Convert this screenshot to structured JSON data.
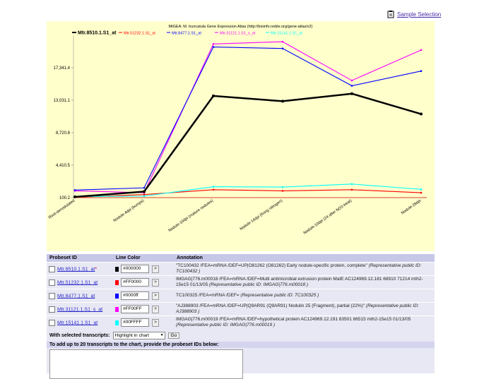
{
  "header": {
    "sample_selection": "Sample Selection"
  },
  "chart_data": {
    "type": "line",
    "title": "MtGEA: M. truncatula Gene Expression Atlas (http://bioinfo.noble.org/gene-atlas/v2)",
    "categories": [
      "Root-denodulated",
      "Nodule-4dpi (bumps)",
      "Nodule-10dpi (mature nodules)",
      "Nodule-14dpi (fixing nitrogen)",
      "Nodule-10dpi (24 after NO3 treat)",
      "Nodule-28dpi"
    ],
    "yticks": [
      "100.2",
      "4,410.5",
      "8,720.8",
      "13,031.1",
      "17,341.4"
    ],
    "ylim": [
      100.2,
      21651.7
    ],
    "series": [
      {
        "name": "Mtr.8510.1.S1_at",
        "color": "#000000",
        "values": [
          200,
          900,
          13600,
          12900,
          13900,
          11200
        ]
      },
      {
        "name": "Mtr.51232.1.S1_at",
        "color": "#FF0000",
        "values": [
          150,
          500,
          1150,
          1000,
          1150,
          750
        ]
      },
      {
        "name": "Mtr.8477.1.S1_at",
        "color": "#0000FF",
        "values": [
          1100,
          1400,
          20100,
          19900,
          14950,
          16900
        ]
      },
      {
        "name": "Mtr.31121.1.S1_s_at",
        "color": "#FF00FF",
        "values": [
          1000,
          750,
          20500,
          20800,
          15650,
          19700
        ]
      },
      {
        "name": "Mtr.15141.1.S1_at",
        "color": "#00FFFF",
        "values": [
          250,
          300,
          1550,
          1500,
          1900,
          1200
        ]
      }
    ]
  },
  "table": {
    "headers": {
      "probe": "Probeset ID",
      "color": "Line Color",
      "annotation": "Annotation"
    },
    "rows": [
      {
        "id": "Mtr.8510.1.S1_at",
        "mark": "*",
        "color": "#000000",
        "anno": "\"TC100432 /FEA=mRNA /DEF=UP|O81262 (O81262) Early nodule-specific protein, complete\"",
        "rep": "(Representative public ID: TC100432 )"
      },
      {
        "id": "Mtr.51232.1.S1_at",
        "mark": "",
        "color": "#FF0000",
        "anno": "IMGAG|776.m00018 /FEA=mRNA /DEF=Multi antimicrobial extrusion protein MatE AC124969.12.181 68910 71214 mth2-15e15 01/13/05",
        "rep": "(Representative public ID: IMGAG|776.m00018 )"
      },
      {
        "id": "Mtr.8477.1.S1_at",
        "mark": "",
        "color": "#0000ff",
        "anno": "TC100325 /FEA=mRNA /DEF=",
        "rep": "(Representative public ID: TC100325 )"
      },
      {
        "id": "Mtr.31121.1.S1_s_at",
        "mark": "",
        "color": "#FF00FF",
        "anno": "\"AJ388903 /FEA=mRNA /DEF=UP|Q9AR91 (Q9AR91) Nodulin 25 (Fragment), partial (22%)\"",
        "rep": "(Representative public ID: AJ388903 )"
      },
      {
        "id": "Mtr.15141.1.S1_at",
        "mark": "",
        "color": "#00FFFF",
        "anno": "IMGAG|776.m00019 /FEA=mRNA /DEF=hypothetical protein AC124969.12.191 83501 86515 mth2-15e15 01/13/05",
        "rep": "(Representative public ID: IMGAG|776.m00019 )"
      }
    ],
    "go_label": ">"
  },
  "actions": {
    "label": "With selected transcripts:",
    "select_value": "Highlight in chart",
    "go": "Go"
  },
  "add": {
    "label": "To add up to 20 transcripts to the chart, provide the probeset IDs below:"
  }
}
